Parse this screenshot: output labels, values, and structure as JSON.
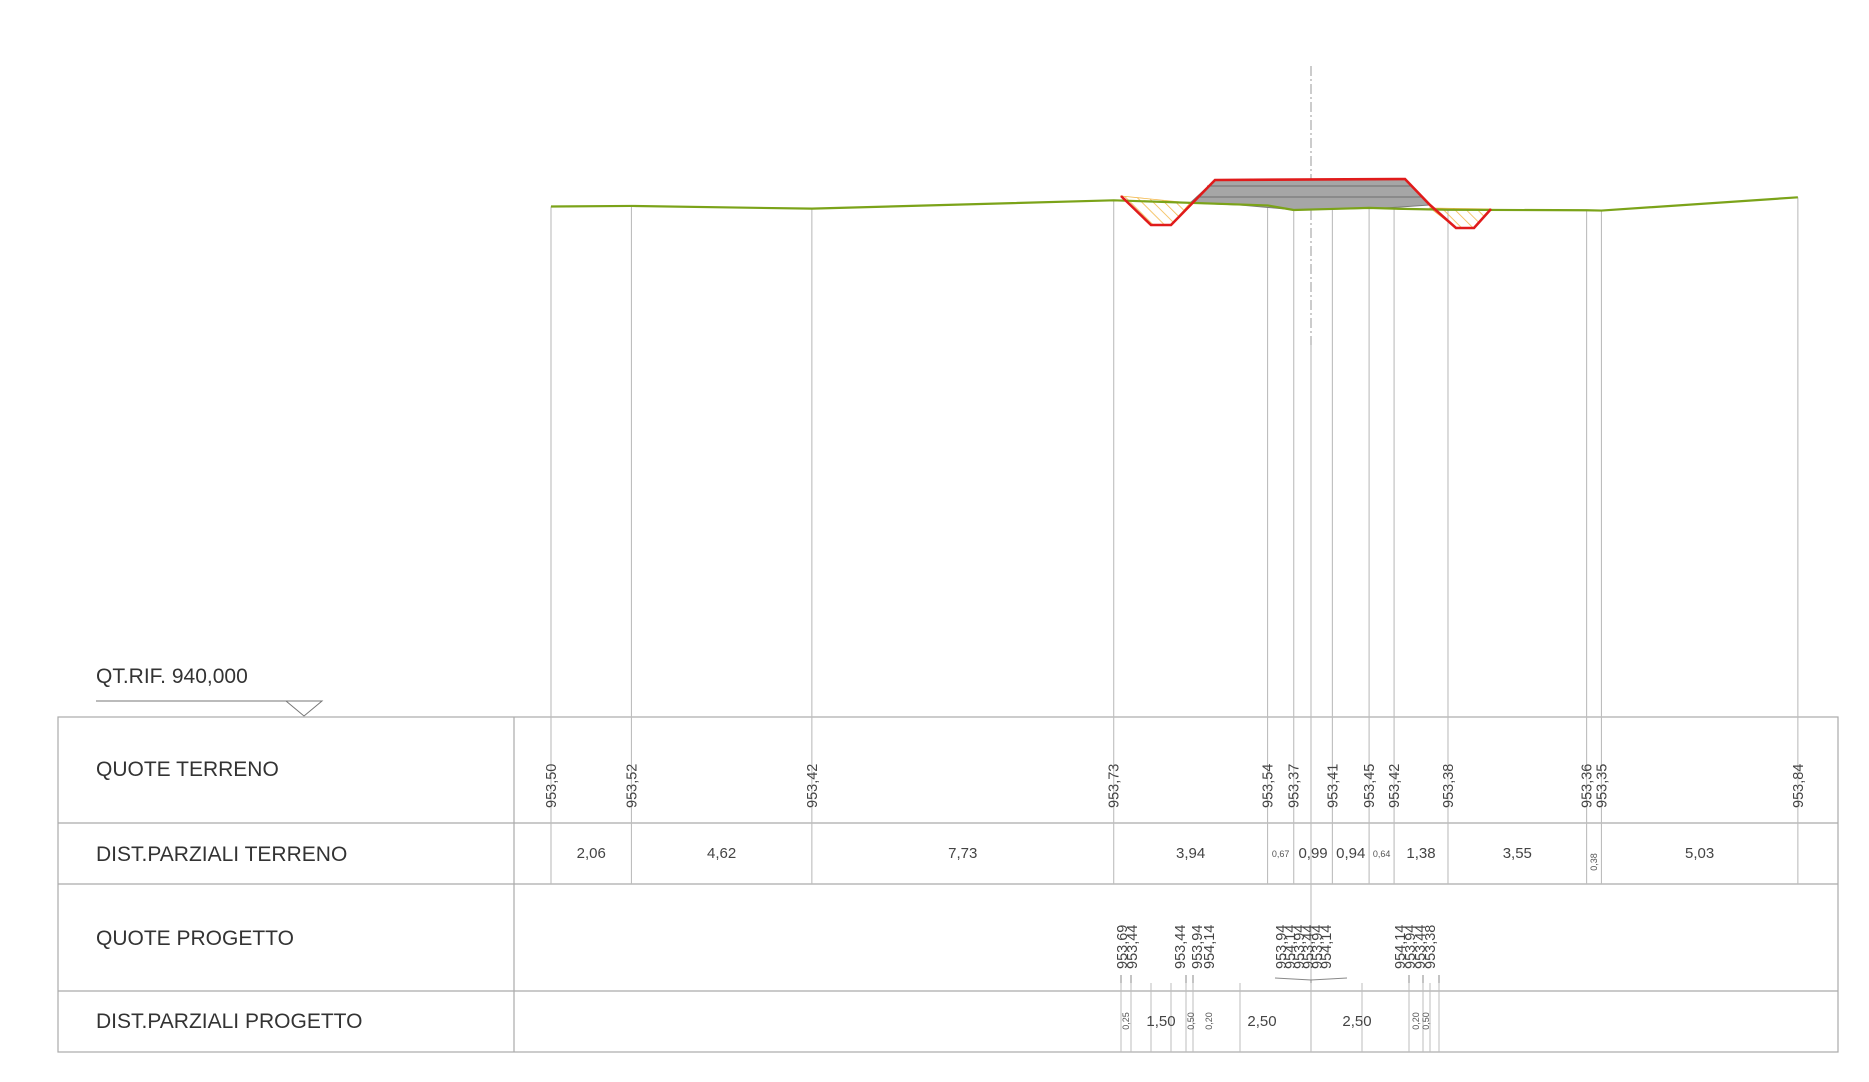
{
  "reference": {
    "label": "QT.RIF. 940,000"
  },
  "rows": {
    "quote_terreno": "QUOTE TERRENO",
    "dist_terreno": "DIST.PARZIALI TERRENO",
    "quote_progetto": "QUOTE PROGETTO",
    "dist_progetto": "DIST.PARZIALI PROGETTO"
  },
  "terrain": {
    "stations": [
      0,
      2.06,
      6.68,
      14.41,
      18.35,
      19.02,
      20.01,
      20.95,
      21.59,
      22.97,
      26.52,
      26.9,
      31.93
    ],
    "elevations": [
      "953,50",
      "953,52",
      "953,42",
      "953,73",
      "953,54",
      "953,37",
      "953,41",
      "953,45",
      "953,42",
      "953,38",
      "953,36",
      "953,35",
      "953,84"
    ],
    "partials": [
      {
        "text": "2,06",
        "small": false
      },
      {
        "text": "4,62",
        "small": false
      },
      {
        "text": "7,73",
        "small": false
      },
      {
        "text": "3,94",
        "small": false
      },
      {
        "text": "0,67",
        "small": true
      },
      {
        "text": "0,99",
        "small": false
      },
      {
        "text": "0,94",
        "small": false
      },
      {
        "text": "0,64",
        "small": true
      },
      {
        "text": "1,38",
        "small": false
      },
      {
        "text": "3,55",
        "small": false
      },
      {
        "text": "0,38",
        "small": true
      },
      {
        "text": "5,03",
        "small": false
      }
    ]
  },
  "project": {
    "groups": [
      {
        "labels": [
          "953,69",
          "953,44"
        ]
      },
      {
        "labels": [
          "953,44",
          "953,94",
          "954,14"
        ]
      },
      {
        "labels": [
          "953,94",
          "954,14",
          "953,94",
          "953,44",
          "953,94",
          "954,14"
        ]
      },
      {
        "labels": [
          "954,14",
          "953,94",
          "953,44",
          "953,38"
        ]
      }
    ],
    "partials": [
      {
        "text": "0,25",
        "small": true
      },
      {
        "text": "1,50",
        "small": false
      },
      {
        "text": "0,50",
        "small": true
      },
      {
        "text": "0,20",
        "small": true
      },
      {
        "text": "2,50",
        "small": false
      },
      {
        "text": "2,50",
        "small": false
      },
      {
        "text": "0,20",
        "small": true
      },
      {
        "text": "0,50",
        "small": true
      }
    ]
  },
  "colors": {
    "terrain_line": "#7ba319",
    "design_outline": "#e01b1b",
    "fill_section": "#a6a6a6",
    "cut_hatch": "#f2b84a",
    "grid": "#bdbdbd"
  }
}
